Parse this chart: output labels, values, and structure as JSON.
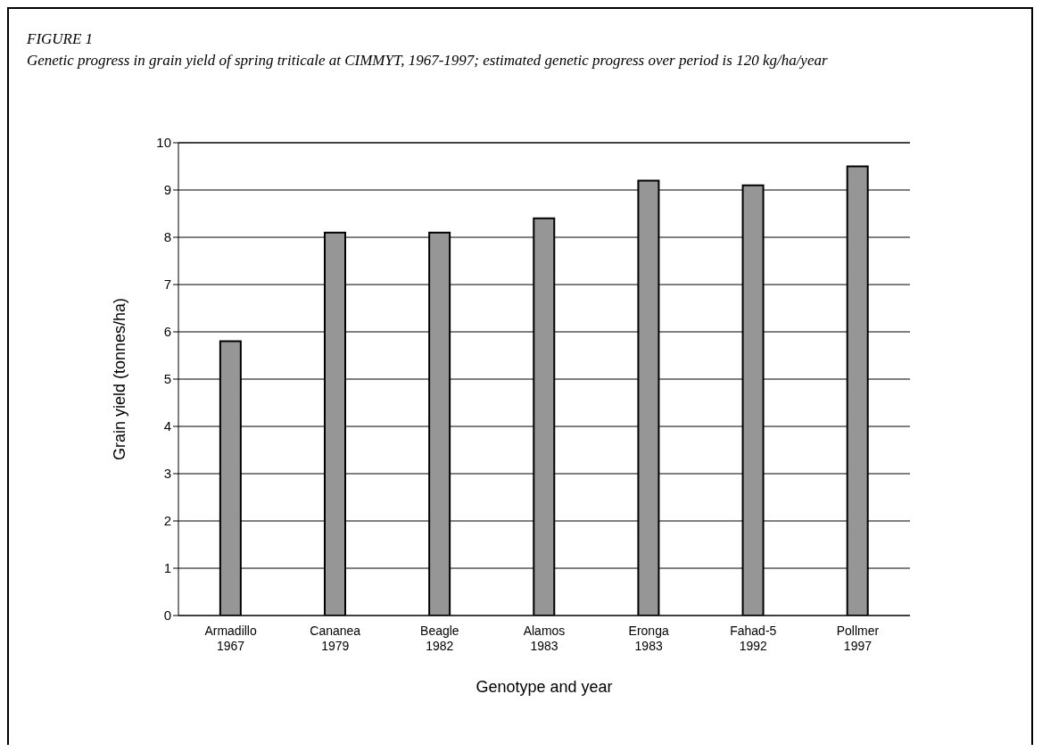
{
  "chart_data": {
    "type": "bar",
    "title": "FIGURE 1",
    "subtitle": "Genetic progress in grain yield of spring triticale at CIMMYT, 1967-1997; estimated genetic progress over period is 120 kg/ha/year",
    "categories": [
      "Armadillo\n1967",
      "Cananea\n1979",
      "Beagle\n1982",
      "Alamos\n1983",
      "Eronga\n1983",
      "Fahad-5\n1992",
      "Pollmer\n1997"
    ],
    "values": [
      5.8,
      8.1,
      8.1,
      8.4,
      9.2,
      9.1,
      9.5
    ],
    "color": "#969696",
    "xlabel": "Genotype and year",
    "ylabel": "Grain yield (tonnes/ha)",
    "ylim": [
      0,
      10
    ],
    "yticks": [
      0,
      1,
      2,
      3,
      4,
      5,
      6,
      7,
      8,
      9,
      10
    ],
    "grid": "y",
    "legend": false
  }
}
